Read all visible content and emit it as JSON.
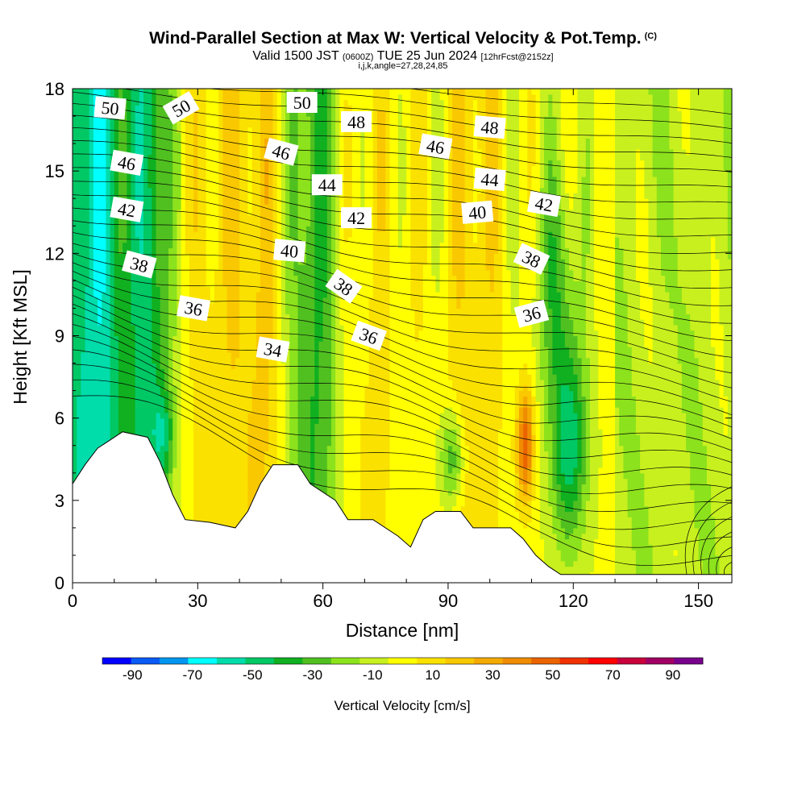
{
  "header": {
    "title": "Wind-Parallel Section at Max W: Vertical Velocity & Pot.Temp.",
    "copyright": "(C)",
    "valid_prefix": "Valid 1500 JST",
    "utc": "(0600Z)",
    "valid_date": "TUE 25 Jun 2024",
    "forecast": "[12hrFcst@2152z]",
    "params": "i,j,k,angle=27,28,24,85"
  },
  "chart_data": {
    "type": "heatmap",
    "xlabel": "Distance [nm]",
    "ylabel": "Height [Kft MSL]",
    "xlim": [
      0,
      158
    ],
    "ylim": [
      0,
      18
    ],
    "x_ticks": [
      0,
      30,
      60,
      90,
      120,
      150
    ],
    "y_ticks": [
      0,
      3,
      6,
      9,
      12,
      15,
      18
    ],
    "colorbar": {
      "title": "Vertical Velocity [cm/s]",
      "tick_values": [
        -90,
        -70,
        -50,
        -30,
        -10,
        10,
        30,
        50,
        70,
        90
      ],
      "levels": [
        -100,
        -90,
        -80,
        -70,
        -60,
        -50,
        -40,
        -30,
        -20,
        -10,
        0,
        10,
        20,
        30,
        40,
        50,
        60,
        70,
        80,
        90,
        100
      ],
      "colors": [
        "#0000ff",
        "#0a5af5",
        "#0096f0",
        "#00ffff",
        "#00dcaa",
        "#00c864",
        "#10b020",
        "#50c020",
        "#8ce21c",
        "#c8f01e",
        "#ffff00",
        "#fae100",
        "#fac800",
        "#f5aa00",
        "#f08c00",
        "#eb6400",
        "#f03200",
        "#ff0000",
        "#c8003c",
        "#a00064",
        "#78008c"
      ]
    },
    "terrain_kft": [
      [
        0,
        3.6
      ],
      [
        3,
        4.3
      ],
      [
        6,
        4.9
      ],
      [
        9,
        5.2
      ],
      [
        12,
        5.5
      ],
      [
        18,
        5.3
      ],
      [
        21,
        4.4
      ],
      [
        24,
        3.2
      ],
      [
        27,
        2.3
      ],
      [
        33,
        2.2
      ],
      [
        39,
        2.0
      ],
      [
        42,
        2.6
      ],
      [
        45,
        3.6
      ],
      [
        48,
        4.3
      ],
      [
        54,
        4.3
      ],
      [
        57,
        3.6
      ],
      [
        60,
        3.3
      ],
      [
        63,
        3.0
      ],
      [
        66,
        2.3
      ],
      [
        72,
        2.3
      ],
      [
        78,
        1.7
      ],
      [
        81,
        1.3
      ],
      [
        84,
        2.3
      ],
      [
        87,
        2.6
      ],
      [
        93,
        2.6
      ],
      [
        96,
        2.0
      ],
      [
        105,
        2.0
      ],
      [
        108,
        1.6
      ],
      [
        111,
        1.0
      ],
      [
        114,
        0.6
      ],
      [
        117,
        0.3
      ],
      [
        158,
        0.3
      ]
    ],
    "theta_contour_labels": [
      {
        "value": "50",
        "x": 9,
        "y": 17.3,
        "angle": 5
      },
      {
        "value": "50",
        "x": 26,
        "y": 17.3,
        "angle": -30
      },
      {
        "value": "50",
        "x": 55,
        "y": 17.5,
        "angle": 0
      },
      {
        "value": "48",
        "x": 68,
        "y": 16.8,
        "angle": 0
      },
      {
        "value": "48",
        "x": 100,
        "y": 16.6,
        "angle": 5
      },
      {
        "value": "46",
        "x": 13,
        "y": 15.3,
        "angle": 10
      },
      {
        "value": "46",
        "x": 50,
        "y": 15.7,
        "angle": 15
      },
      {
        "value": "46",
        "x": 87,
        "y": 15.9,
        "angle": 10
      },
      {
        "value": "44",
        "x": 61,
        "y": 14.5,
        "angle": 0
      },
      {
        "value": "44",
        "x": 100,
        "y": 14.7,
        "angle": 5
      },
      {
        "value": "42",
        "x": 13,
        "y": 13.6,
        "angle": 10
      },
      {
        "value": "42",
        "x": 68,
        "y": 13.3,
        "angle": 0
      },
      {
        "value": "42",
        "x": 113,
        "y": 13.8,
        "angle": 10
      },
      {
        "value": "40",
        "x": 52,
        "y": 12.1,
        "angle": 5
      },
      {
        "value": "40",
        "x": 97,
        "y": 13.5,
        "angle": -5
      },
      {
        "value": "38",
        "x": 16,
        "y": 11.6,
        "angle": 15
      },
      {
        "value": "38",
        "x": 65,
        "y": 10.8,
        "angle": 35
      },
      {
        "value": "38",
        "x": 110,
        "y": 11.8,
        "angle": 25
      },
      {
        "value": "36",
        "x": 29,
        "y": 10.0,
        "angle": 10
      },
      {
        "value": "36",
        "x": 71,
        "y": 9.0,
        "angle": 20
      },
      {
        "value": "36",
        "x": 110,
        "y": 9.8,
        "angle": -15
      },
      {
        "value": "34",
        "x": 48,
        "y": 8.5,
        "angle": 10
      }
    ]
  }
}
